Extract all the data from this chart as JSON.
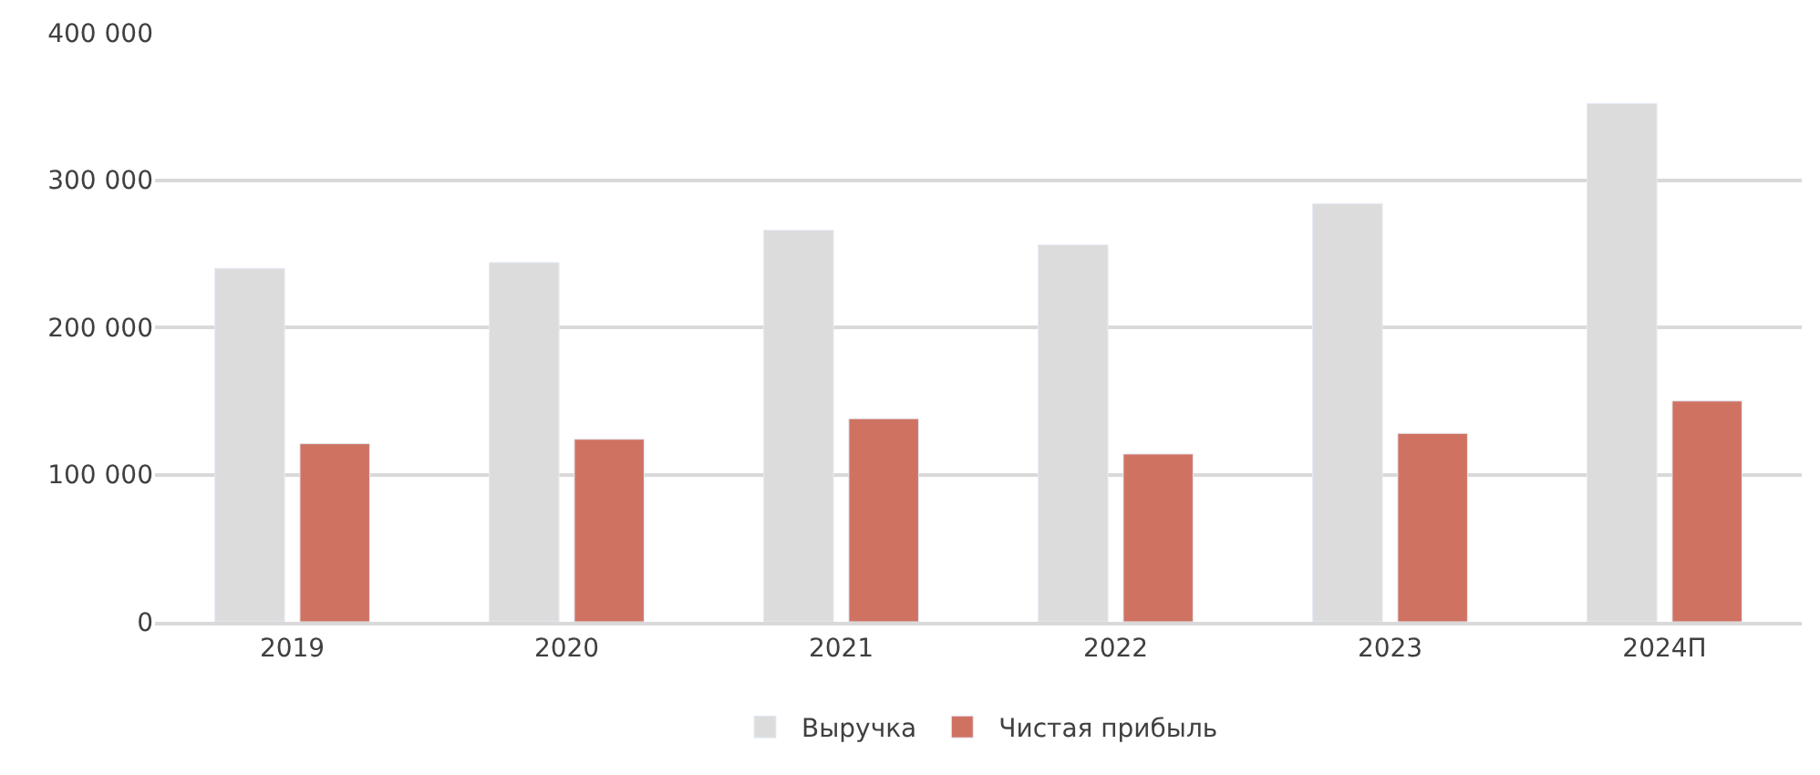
{
  "chart_data": {
    "type": "bar",
    "categories": [
      "2019",
      "2020",
      "2021",
      "2022",
      "2023",
      "2024П"
    ],
    "series": [
      {
        "name": "Выручка",
        "color": "#dcdcdc",
        "values": [
          240000,
          244000,
          266000,
          256000,
          284000,
          352000
        ]
      },
      {
        "name": "Чистая прибыль",
        "color": "#d07262",
        "values": [
          121000,
          124000,
          138000,
          114000,
          128000,
          150000
        ]
      }
    ],
    "ylim": [
      0,
      400000
    ],
    "yticks": [
      {
        "value": 0,
        "label": "0"
      },
      {
        "value": 100000,
        "label": "100 000"
      },
      {
        "value": 200000,
        "label": "200 000"
      },
      {
        "value": 300000,
        "label": "300 000"
      },
      {
        "value": 400000,
        "label": "400 000"
      }
    ],
    "grid": "y",
    "legend": "bottom"
  }
}
